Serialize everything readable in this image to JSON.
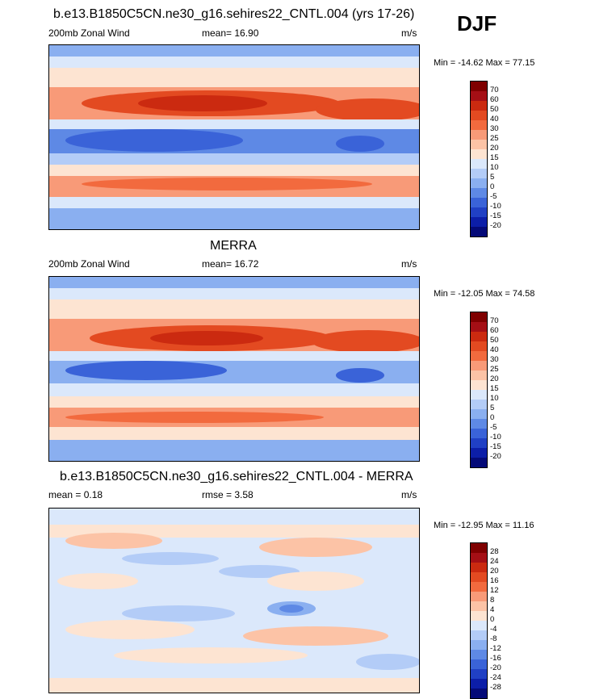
{
  "season": "DJF",
  "panels": [
    {
      "title": "b.e13.B1850C5CN.ne30_g16.sehires22_CNTL.004 (yrs 17-26)",
      "left_label": "200mb Zonal Wind",
      "center_label": "mean=  16.90",
      "units": "m/s",
      "minmax": "Min = -14.62 Max =  77.15",
      "colorbar_labels": [
        "70",
        "60",
        "50",
        "40",
        "30",
        "25",
        "20",
        "15",
        "10",
        "5",
        "0",
        "-5",
        "-10",
        "-15",
        "-20"
      ]
    },
    {
      "title": "MERRA",
      "left_label": "200mb Zonal Wind",
      "center_label": "mean=  16.72",
      "units": "m/s",
      "minmax": "Min = -12.05 Max =  74.58",
      "colorbar_labels": [
        "70",
        "60",
        "50",
        "40",
        "30",
        "25",
        "20",
        "15",
        "10",
        "5",
        "0",
        "-5",
        "-10",
        "-15",
        "-20"
      ]
    },
    {
      "title": "b.e13.B1850C5CN.ne30_g16.sehires22_CNTL.004 - MERRA",
      "left_label": "mean =   0.18",
      "center_label": "rmse =   3.58",
      "units": "m/s",
      "minmax": "Min = -12.95 Max =  11.16",
      "colorbar_labels": [
        "28",
        "24",
        "20",
        "16",
        "12",
        "8",
        "4",
        "0",
        "-4",
        "-8",
        "-12",
        "-16",
        "-20",
        "-24",
        "-28"
      ]
    }
  ],
  "colors": {
    "wind_scale": [
      "#7f0000",
      "#a50f15",
      "#cb2a10",
      "#e34a21",
      "#f26a3e",
      "#f89a78",
      "#fcc3a6",
      "#fde4d2",
      "#dbe8fb",
      "#b3ccf7",
      "#8aaff0",
      "#5e89e5",
      "#3a63d8",
      "#2040c4",
      "#0c1ea8",
      "#040a78"
    ],
    "diff_scale": [
      "#7f0000",
      "#a50f15",
      "#cb2a10",
      "#e34a21",
      "#f26a3e",
      "#f89a78",
      "#fcc3a6",
      "#fde4d2",
      "#dbe8fb",
      "#b3ccf7",
      "#8aaff0",
      "#5e89e5",
      "#3a63d8",
      "#2040c4",
      "#0c1ea8",
      "#040a78"
    ]
  }
}
